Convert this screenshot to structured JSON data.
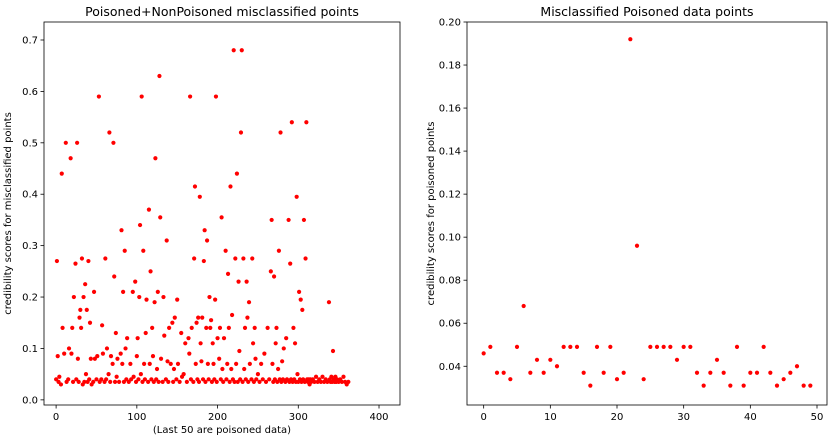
{
  "chart_data": [
    {
      "type": "scatter",
      "title": "Poisoned+NonPoisoned misclassified points",
      "xlabel": "(Last 50 are poisoned data)",
      "ylabel": "credibility scores for misclassified points",
      "xlim": [
        -15,
        426
      ],
      "ylim": [
        -0.01,
        0.735
      ],
      "xticks": [
        0,
        100,
        200,
        300,
        400
      ],
      "yticks": [
        0.0,
        0.1,
        0.2,
        0.3,
        0.4,
        0.5,
        0.6,
        0.7
      ],
      "marker_color": "#ff0000",
      "grid": false,
      "points": [
        [
          0,
          0.04
        ],
        [
          1,
          0.27
        ],
        [
          2,
          0.085
        ],
        [
          3,
          0.035
        ],
        [
          4,
          0.045
        ],
        [
          6,
          0.03
        ],
        [
          7,
          0.44
        ],
        [
          8,
          0.14
        ],
        [
          10,
          0.09
        ],
        [
          12,
          0.5
        ],
        [
          13,
          0.035
        ],
        [
          15,
          0.04
        ],
        [
          16,
          0.1
        ],
        [
          18,
          0.47
        ],
        [
          19,
          0.09
        ],
        [
          20,
          0.14
        ],
        [
          21,
          0.035
        ],
        [
          22,
          0.2
        ],
        [
          24,
          0.265
        ],
        [
          25,
          0.04
        ],
        [
          26,
          0.5
        ],
        [
          27,
          0.08
        ],
        [
          28,
          0.035
        ],
        [
          29,
          0.16
        ],
        [
          30,
          0.175
        ],
        [
          31,
          0.14
        ],
        [
          32,
          0.275
        ],
        [
          33,
          0.03
        ],
        [
          34,
          0.2
        ],
        [
          35,
          0.035
        ],
        [
          36,
          0.225
        ],
        [
          37,
          0.05
        ],
        [
          38,
          0.175
        ],
        [
          39,
          0.035
        ],
        [
          40,
          0.27
        ],
        [
          41,
          0.04
        ],
        [
          42,
          0.15
        ],
        [
          43,
          0.08
        ],
        [
          44,
          0.03
        ],
        [
          46,
          0.035
        ],
        [
          47,
          0.21
        ],
        [
          48,
          0.08
        ],
        [
          50,
          0.04
        ],
        [
          51,
          0.085
        ],
        [
          53,
          0.59
        ],
        [
          54,
          0.035
        ],
        [
          56,
          0.04
        ],
        [
          57,
          0.145
        ],
        [
          58,
          0.09
        ],
        [
          60,
          0.035
        ],
        [
          61,
          0.275
        ],
        [
          62,
          0.04
        ],
        [
          63,
          0.1
        ],
        [
          65,
          0.05
        ],
        [
          66,
          0.52
        ],
        [
          67,
          0.035
        ],
        [
          68,
          0.085
        ],
        [
          70,
          0.07
        ],
        [
          71,
          0.5
        ],
        [
          72,
          0.24
        ],
        [
          73,
          0.035
        ],
        [
          74,
          0.13
        ],
        [
          75,
          0.045
        ],
        [
          76,
          0.08
        ],
        [
          78,
          0.035
        ],
        [
          80,
          0.09
        ],
        [
          81,
          0.33
        ],
        [
          82,
          0.07
        ],
        [
          83,
          0.21
        ],
        [
          84,
          0.035
        ],
        [
          85,
          0.29
        ],
        [
          86,
          0.1
        ],
        [
          87,
          0.04
        ],
        [
          88,
          0.12
        ],
        [
          90,
          0.035
        ],
        [
          92,
          0.07
        ],
        [
          93,
          0.04
        ],
        [
          95,
          0.21
        ],
        [
          96,
          0.045
        ],
        [
          98,
          0.23
        ],
        [
          99,
          0.035
        ],
        [
          100,
          0.085
        ],
        [
          101,
          0.12
        ],
        [
          102,
          0.04
        ],
        [
          103,
          0.2
        ],
        [
          104,
          0.34
        ],
        [
          105,
          0.05
        ],
        [
          106,
          0.59
        ],
        [
          107,
          0.035
        ],
        [
          108,
          0.29
        ],
        [
          109,
          0.07
        ],
        [
          110,
          0.04
        ],
        [
          111,
          0.13
        ],
        [
          112,
          0.195
        ],
        [
          114,
          0.035
        ],
        [
          115,
          0.37
        ],
        [
          116,
          0.07
        ],
        [
          117,
          0.25
        ],
        [
          118,
          0.04
        ],
        [
          119,
          0.14
        ],
        [
          120,
          0.085
        ],
        [
          121,
          0.035
        ],
        [
          122,
          0.19
        ],
        [
          123,
          0.47
        ],
        [
          124,
          0.04
        ],
        [
          125,
          0.06
        ],
        [
          126,
          0.21
        ],
        [
          127,
          0.035
        ],
        [
          128,
          0.63
        ],
        [
          129,
          0.355
        ],
        [
          130,
          0.08
        ],
        [
          132,
          0.035
        ],
        [
          133,
          0.2
        ],
        [
          134,
          0.125
        ],
        [
          136,
          0.04
        ],
        [
          137,
          0.31
        ],
        [
          138,
          0.075
        ],
        [
          139,
          0.035
        ],
        [
          140,
          0.14
        ],
        [
          142,
          0.07
        ],
        [
          144,
          0.15
        ],
        [
          145,
          0.035
        ],
        [
          146,
          0.06
        ],
        [
          147,
          0.16
        ],
        [
          149,
          0.04
        ],
        [
          150,
          0.195
        ],
        [
          151,
          0.07
        ],
        [
          153,
          0.035
        ],
        [
          155,
          0.13
        ],
        [
          156,
          0.045
        ],
        [
          158,
          0.05
        ],
        [
          160,
          0.11
        ],
        [
          162,
          0.035
        ],
        [
          164,
          0.12
        ],
        [
          165,
          0.09
        ],
        [
          166,
          0.59
        ],
        [
          167,
          0.04
        ],
        [
          168,
          0.14
        ],
        [
          170,
          0.035
        ],
        [
          171,
          0.275
        ],
        [
          172,
          0.415
        ],
        [
          173,
          0.07
        ],
        [
          174,
          0.15
        ],
        [
          175,
          0.04
        ],
        [
          176,
          0.16
        ],
        [
          177,
          0.035
        ],
        [
          178,
          0.395
        ],
        [
          179,
          0.11
        ],
        [
          180,
          0.075
        ],
        [
          181,
          0.16
        ],
        [
          182,
          0.04
        ],
        [
          183,
          0.27
        ],
        [
          184,
          0.33
        ],
        [
          185,
          0.035
        ],
        [
          186,
          0.14
        ],
        [
          187,
          0.31
        ],
        [
          188,
          0.07
        ],
        [
          189,
          0.04
        ],
        [
          190,
          0.2
        ],
        [
          191,
          0.14
        ],
        [
          192,
          0.155
        ],
        [
          193,
          0.035
        ],
        [
          194,
          0.11
        ],
        [
          195,
          0.07
        ],
        [
          196,
          0.04
        ],
        [
          197,
          0.195
        ],
        [
          198,
          0.59
        ],
        [
          199,
          0.035
        ],
        [
          200,
          0.12
        ],
        [
          202,
          0.08
        ],
        [
          203,
          0.14
        ],
        [
          204,
          0.04
        ],
        [
          205,
          0.355
        ],
        [
          206,
          0.06
        ],
        [
          207,
          0.035
        ],
        [
          208,
          0.12
        ],
        [
          210,
          0.29
        ],
        [
          211,
          0.04
        ],
        [
          212,
          0.07
        ],
        [
          213,
          0.245
        ],
        [
          214,
          0.14
        ],
        [
          215,
          0.035
        ],
        [
          216,
          0.415
        ],
        [
          217,
          0.06
        ],
        [
          218,
          0.165
        ],
        [
          219,
          0.04
        ],
        [
          220,
          0.68
        ],
        [
          221,
          0.035
        ],
        [
          222,
          0.275
        ],
        [
          223,
          0.07
        ],
        [
          224,
          0.44
        ],
        [
          225,
          0.035
        ],
        [
          226,
          0.23
        ],
        [
          227,
          0.095
        ],
        [
          228,
          0.04
        ],
        [
          229,
          0.52
        ],
        [
          230,
          0.68
        ],
        [
          231,
          0.035
        ],
        [
          232,
          0.275
        ],
        [
          233,
          0.06
        ],
        [
          234,
          0.14
        ],
        [
          235,
          0.04
        ],
        [
          236,
          0.23
        ],
        [
          237,
          0.16
        ],
        [
          238,
          0.035
        ],
        [
          239,
          0.19
        ],
        [
          240,
          0.07
        ],
        [
          242,
          0.04
        ],
        [
          243,
          0.275
        ],
        [
          244,
          0.11
        ],
        [
          245,
          0.035
        ],
        [
          246,
          0.14
        ],
        [
          247,
          0.08
        ],
        [
          248,
          0.04
        ],
        [
          250,
          0.05
        ],
        [
          252,
          0.035
        ],
        [
          254,
          0.07
        ],
        [
          256,
          0.04
        ],
        [
          258,
          0.09
        ],
        [
          260,
          0.035
        ],
        [
          262,
          0.14
        ],
        [
          264,
          0.04
        ],
        [
          266,
          0.25
        ],
        [
          267,
          0.35
        ],
        [
          268,
          0.07
        ],
        [
          269,
          0.035
        ],
        [
          270,
          0.24
        ],
        [
          271,
          0.04
        ],
        [
          272,
          0.11
        ],
        [
          273,
          0.14
        ],
        [
          274,
          0.035
        ],
        [
          275,
          0.06
        ],
        [
          276,
          0.29
        ],
        [
          277,
          0.04
        ],
        [
          278,
          0.52
        ],
        [
          279,
          0.035
        ],
        [
          280,
          0.075
        ],
        [
          281,
          0.04
        ],
        [
          282,
          0.1
        ],
        [
          284,
          0.035
        ],
        [
          285,
          0.12
        ],
        [
          286,
          0.04
        ],
        [
          288,
          0.35
        ],
        [
          289,
          0.035
        ],
        [
          290,
          0.265
        ],
        [
          291,
          0.04
        ],
        [
          292,
          0.54
        ],
        [
          293,
          0.035
        ],
        [
          294,
          0.14
        ],
        [
          295,
          0.04
        ],
        [
          296,
          0.11
        ],
        [
          297,
          0.035
        ],
        [
          298,
          0.395
        ],
        [
          299,
          0.05
        ],
        [
          300,
          0.035
        ],
        [
          301,
          0.21
        ],
        [
          302,
          0.04
        ],
        [
          303,
          0.195
        ],
        [
          304,
          0.035
        ],
        [
          305,
          0.175
        ],
        [
          306,
          0.04
        ],
        [
          307,
          0.35
        ],
        [
          308,
          0.035
        ],
        [
          309,
          0.275
        ],
        [
          310,
          0.54
        ],
        [
          311,
          0.04
        ],
        [
          312,
          0.035
        ],
        [
          313,
          0.04
        ],
        [
          314,
          0.03
        ],
        [
          315,
          0.04
        ],
        [
          316,
          0.035
        ],
        [
          318,
          0.04
        ],
        [
          320,
          0.035
        ],
        [
          322,
          0.045
        ],
        [
          324,
          0.035
        ],
        [
          326,
          0.04
        ],
        [
          328,
          0.035
        ],
        [
          330,
          0.045
        ],
        [
          332,
          0.035
        ],
        [
          334,
          0.04
        ],
        [
          336,
          0.035
        ],
        [
          338,
          0.19
        ],
        [
          339,
          0.04
        ],
        [
          340,
          0.035
        ],
        [
          341,
          0.045
        ],
        [
          342,
          0.035
        ],
        [
          343,
          0.095
        ],
        [
          344,
          0.04
        ],
        [
          345,
          0.035
        ],
        [
          346,
          0.045
        ],
        [
          347,
          0.035
        ],
        [
          348,
          0.04
        ],
        [
          350,
          0.035
        ],
        [
          352,
          0.04
        ],
        [
          354,
          0.035
        ],
        [
          356,
          0.045
        ],
        [
          358,
          0.035
        ],
        [
          360,
          0.03
        ],
        [
          362,
          0.035
        ]
      ]
    },
    {
      "type": "scatter",
      "title": "Misclassified Poisoned data points",
      "xlabel": "",
      "ylabel": "credibility scores for poisoned points",
      "xlim": [
        -2.5,
        51.5
      ],
      "ylim": [
        0.022,
        0.2
      ],
      "xticks": [
        0,
        10,
        20,
        30,
        40,
        50
      ],
      "yticks": [
        0.04,
        0.06,
        0.08,
        0.1,
        0.12,
        0.14,
        0.16,
        0.18,
        0.2
      ],
      "marker_color": "#ff0000",
      "grid": false,
      "points": [
        [
          0,
          0.046
        ],
        [
          1,
          0.049
        ],
        [
          2,
          0.037
        ],
        [
          3,
          0.037
        ],
        [
          4,
          0.034
        ],
        [
          5,
          0.049
        ],
        [
          6,
          0.068
        ],
        [
          7,
          0.037
        ],
        [
          8,
          0.043
        ],
        [
          9,
          0.037
        ],
        [
          10,
          0.043
        ],
        [
          11,
          0.04
        ],
        [
          12,
          0.049
        ],
        [
          13,
          0.049
        ],
        [
          14,
          0.049
        ],
        [
          15,
          0.037
        ],
        [
          16,
          0.031
        ],
        [
          17,
          0.049
        ],
        [
          18,
          0.037
        ],
        [
          19,
          0.049
        ],
        [
          20,
          0.034
        ],
        [
          21,
          0.037
        ],
        [
          22,
          0.192
        ],
        [
          23,
          0.096
        ],
        [
          24,
          0.034
        ],
        [
          25,
          0.049
        ],
        [
          26,
          0.049
        ],
        [
          27,
          0.049
        ],
        [
          28,
          0.049
        ],
        [
          29,
          0.043
        ],
        [
          30,
          0.049
        ],
        [
          31,
          0.049
        ],
        [
          32,
          0.037
        ],
        [
          33,
          0.031
        ],
        [
          34,
          0.037
        ],
        [
          35,
          0.043
        ],
        [
          36,
          0.037
        ],
        [
          37,
          0.031
        ],
        [
          38,
          0.049
        ],
        [
          39,
          0.031
        ],
        [
          40,
          0.037
        ],
        [
          41,
          0.037
        ],
        [
          42,
          0.049
        ],
        [
          43,
          0.037
        ],
        [
          44,
          0.031
        ],
        [
          45,
          0.034
        ],
        [
          46,
          0.037
        ],
        [
          47,
          0.04
        ],
        [
          48,
          0.031
        ],
        [
          49,
          0.031
        ]
      ]
    }
  ]
}
